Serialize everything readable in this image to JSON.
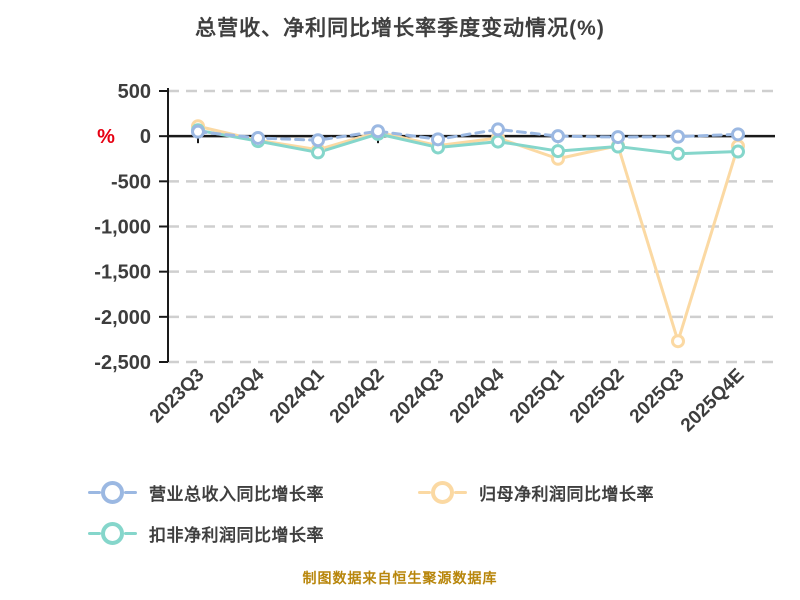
{
  "title": "总营收、净利同比增长率季度变动情况(%)",
  "footer": "制图数据来自恒生聚源数据库",
  "chart_data": {
    "type": "line",
    "title": "总营收、净利同比增长率季度变动情况(%)",
    "categories": [
      "2023Q3",
      "2023Q4",
      "2024Q1",
      "2024Q2",
      "2024Q3",
      "2024Q4",
      "2025Q1",
      "2025Q2",
      "2025Q3",
      "2025Q4E"
    ],
    "series": [
      {
        "key": "revenue-growth",
        "name": "营业总收入同比增长率",
        "color": "#9bb8e2",
        "dashed": true,
        "values": [
          50,
          -20,
          -45,
          55,
          -35,
          75,
          0,
          -10,
          -5,
          20
        ]
      },
      {
        "key": "net-profit-growth",
        "name": "归母净利润同比增长率",
        "color": "#fbd9a3",
        "dashed": false,
        "values": [
          110,
          -45,
          -150,
          45,
          -105,
          -20,
          -250,
          -105,
          -2270,
          -110
        ]
      },
      {
        "key": "deducted-net-profit-growth",
        "name": "扣非净利润同比增长率",
        "color": "#85d6cb",
        "dashed": false,
        "values": [
          65,
          -55,
          -180,
          25,
          -125,
          -60,
          -165,
          -115,
          -195,
          -170
        ]
      }
    ],
    "ylabel": "%",
    "ylim": [
      -2500,
      500
    ],
    "yticks": [
      {
        "value": 500,
        "label": "500"
      },
      {
        "value": 0,
        "label": "0"
      },
      {
        "value": -500,
        "label": "-500"
      },
      {
        "value": -1000,
        "label": "-1,000"
      },
      {
        "value": -1500,
        "label": "-1,500"
      },
      {
        "value": -2000,
        "label": "-2,000"
      },
      {
        "value": -2500,
        "label": "-2,500"
      }
    ],
    "grid": true,
    "legend_position": "bottom",
    "x_label_rotation": 45
  },
  "colors": {
    "background": "#ffffff",
    "text": "#3f3f3f",
    "gridline": "#cfcfcf",
    "axis": "#1a1a1a",
    "ylabel_percent": "#e60012",
    "footer": "#b8860b"
  }
}
